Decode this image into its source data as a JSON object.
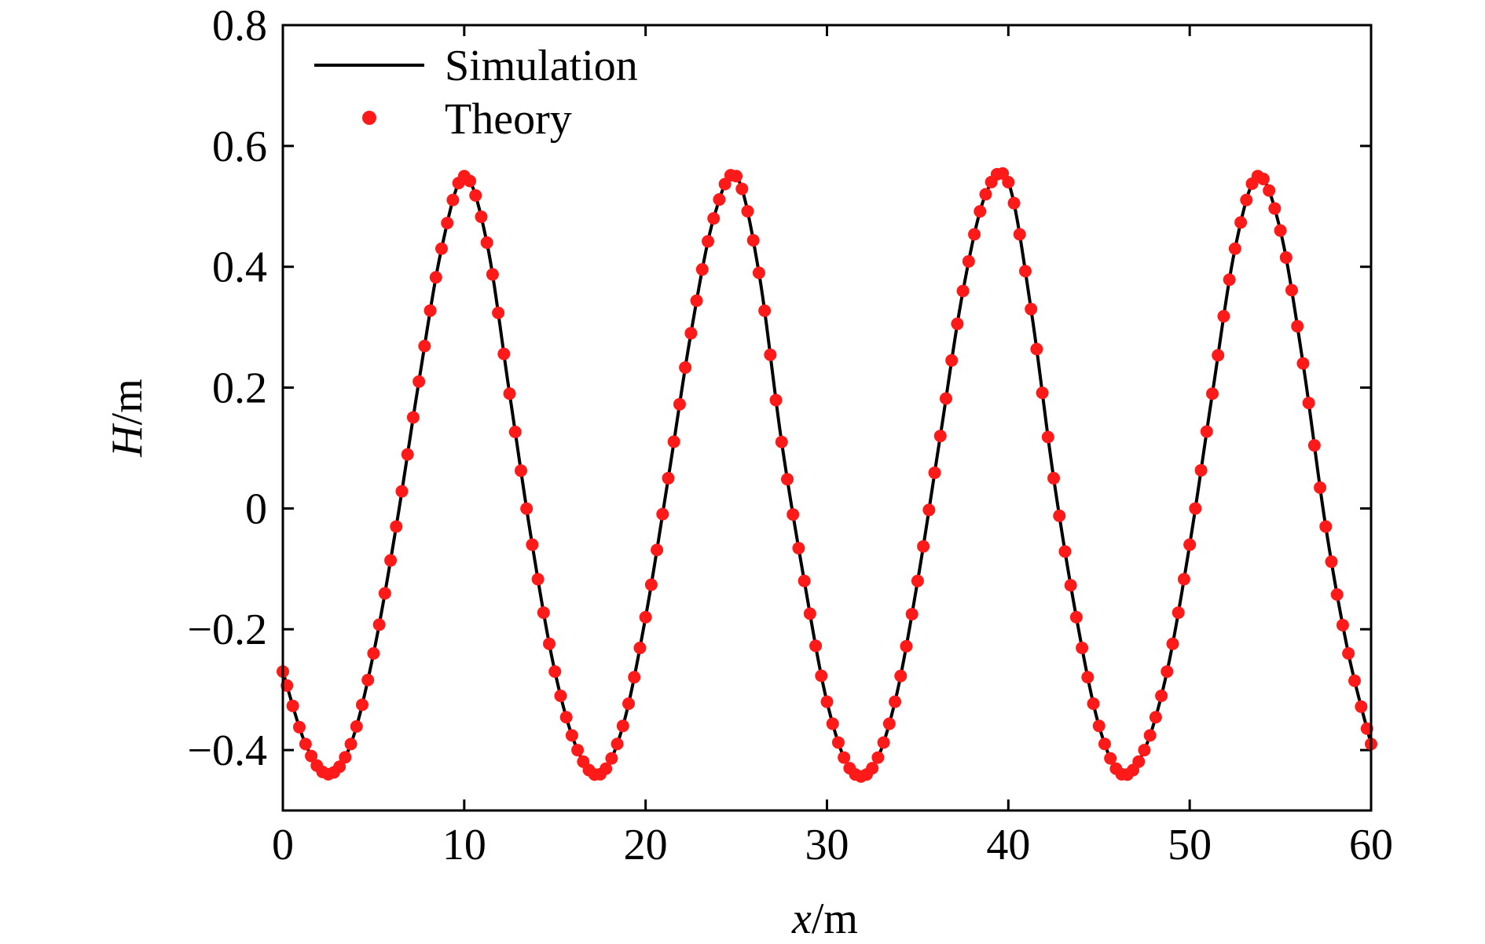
{
  "chart_data": {
    "type": "line",
    "title": "",
    "xlabel": {
      "symbol": "x",
      "unit": "/m"
    },
    "ylabel": {
      "symbol": "H",
      "unit": "/m"
    },
    "xlim": [
      0,
      60
    ],
    "ylim": [
      -0.5,
      0.8
    ],
    "xticks": [
      0,
      10,
      20,
      30,
      40,
      50,
      60
    ],
    "xtick_labels": [
      "0",
      "10",
      "20",
      "30",
      "40",
      "50",
      "60"
    ],
    "yticks": [
      -0.4,
      -0.2,
      0,
      0.2,
      0.4,
      0.6,
      0.8
    ],
    "ytick_labels": [
      "−0.4",
      "−0.2",
      "0",
      "0.2",
      "0.4",
      "0.6",
      "0.8"
    ],
    "grid": false,
    "legend_position": "top-left",
    "series": [
      {
        "name": "Simulation",
        "style": "line",
        "color": "#000000",
        "x": [
          0,
          1.25,
          2.5,
          3.75,
          5,
          6.25,
          7.5,
          8.75,
          10,
          11.25,
          12.5,
          13.75,
          15,
          16.25,
          17.5,
          18.75,
          20,
          21.25,
          22.5,
          23.75,
          25,
          26.25,
          27.5,
          28.75,
          30,
          31.25,
          32.5,
          33.75,
          35,
          36.25,
          37.5,
          38.75,
          40,
          41.25,
          42.5,
          43.75,
          45,
          46.25,
          47.5,
          48.75,
          50,
          51.25,
          52.5,
          53.75,
          55,
          56.25,
          57.5,
          58.75,
          60
        ],
        "y": [
          -0.27,
          -0.39,
          -0.44,
          -0.39,
          -0.24,
          -0.03,
          0.21,
          0.43,
          0.55,
          0.44,
          0.19,
          -0.06,
          -0.27,
          -0.4,
          -0.44,
          -0.36,
          -0.18,
          0.05,
          0.29,
          0.48,
          0.55,
          0.39,
          0.11,
          -0.12,
          -0.32,
          -0.43,
          -0.43,
          -0.32,
          -0.12,
          0.12,
          0.36,
          0.52,
          0.54,
          0.33,
          0.05,
          -0.18,
          -0.36,
          -0.44,
          -0.4,
          -0.27,
          -0.06,
          0.19,
          0.43,
          0.55,
          0.46,
          0.24,
          -0.03,
          -0.24,
          -0.39
        ]
      },
      {
        "name": "Theory",
        "style": "scatter",
        "color": "#ff1a1a",
        "x": [
          0,
          1.25,
          2.5,
          3.75,
          5,
          6.25,
          7.5,
          8.75,
          10,
          11.25,
          12.5,
          13.75,
          15,
          16.25,
          17.5,
          18.75,
          20,
          21.25,
          22.5,
          23.75,
          25,
          26.25,
          27.5,
          28.75,
          30,
          31.25,
          32.5,
          33.75,
          35,
          36.25,
          37.5,
          38.75,
          40,
          41.25,
          42.5,
          43.75,
          45,
          46.25,
          47.5,
          48.75,
          50,
          51.25,
          52.5,
          53.75,
          55,
          56.25,
          57.5,
          58.75,
          60
        ],
        "y": [
          -0.27,
          -0.39,
          -0.44,
          -0.39,
          -0.24,
          -0.03,
          0.21,
          0.43,
          0.55,
          0.44,
          0.19,
          -0.06,
          -0.27,
          -0.4,
          -0.44,
          -0.36,
          -0.18,
          0.05,
          0.29,
          0.48,
          0.55,
          0.39,
          0.11,
          -0.12,
          -0.32,
          -0.43,
          -0.43,
          -0.32,
          -0.12,
          0.12,
          0.36,
          0.52,
          0.54,
          0.33,
          0.05,
          -0.18,
          -0.36,
          -0.44,
          -0.4,
          -0.27,
          -0.06,
          0.19,
          0.43,
          0.55,
          0.46,
          0.24,
          -0.03,
          -0.24,
          -0.39
        ]
      }
    ]
  }
}
